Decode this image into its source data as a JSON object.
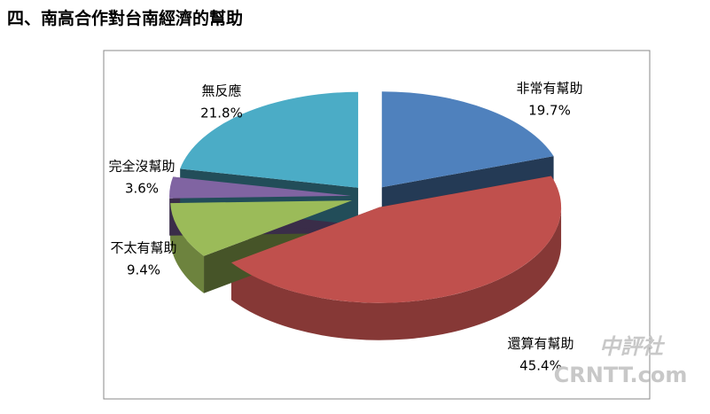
{
  "chart_data": {
    "type": "pie3d",
    "title": "四、南高合作對台南經濟的幫助",
    "categories": [
      "非常有幫助",
      "還算有幫助",
      "不太有幫助",
      "完全沒幫助",
      "無反應"
    ],
    "values": [
      19.7,
      45.4,
      9.4,
      3.6,
      21.8
    ],
    "value_labels": [
      "19.7%",
      "45.4%",
      "9.4%",
      "3.6%",
      "21.8%"
    ],
    "colors": [
      "#4f81bd",
      "#c0504d",
      "#9bbb59",
      "#8064a2",
      "#4bacc6"
    ]
  },
  "watermark": [
    "中評社",
    "CRNTT.com"
  ]
}
